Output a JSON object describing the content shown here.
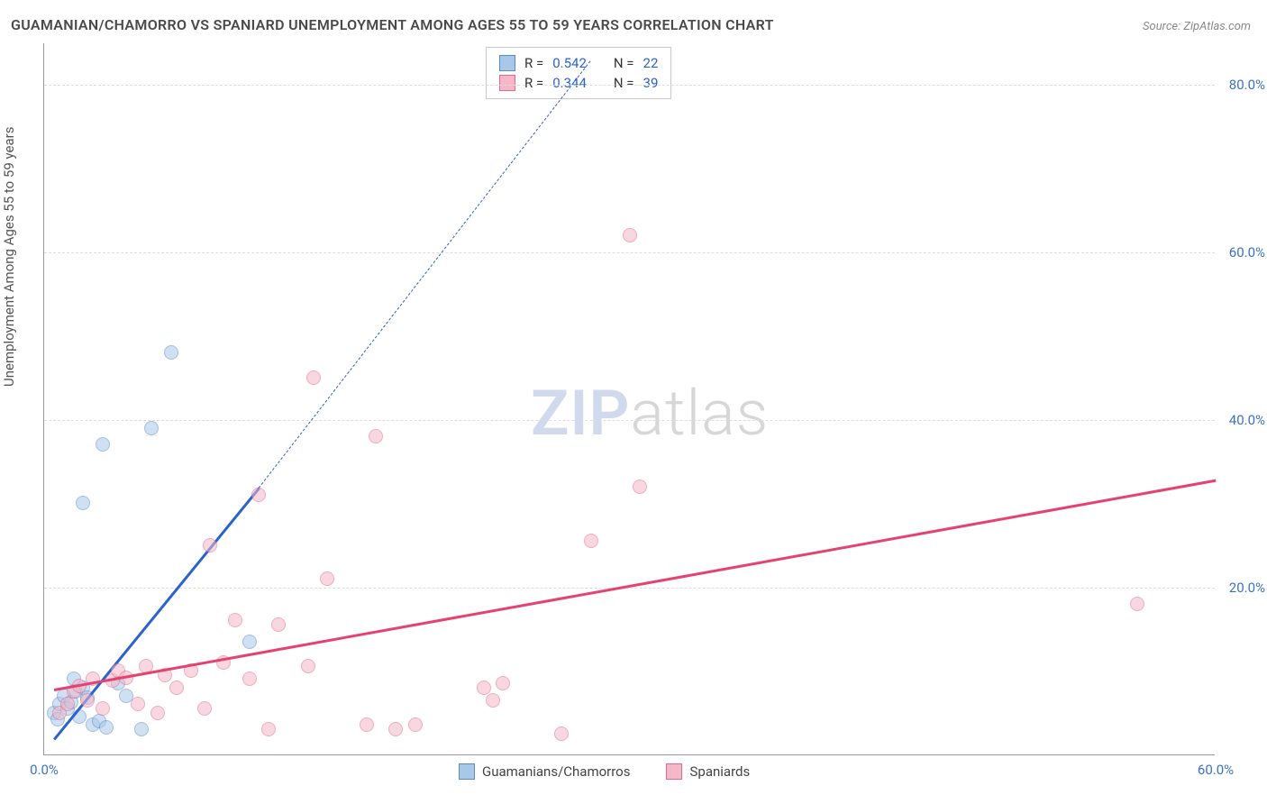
{
  "title": "GUAMANIAN/CHAMORRO VS SPANIARD UNEMPLOYMENT AMONG AGES 55 TO 59 YEARS CORRELATION CHART",
  "source_label": "Source: ZipAtlas.com",
  "y_axis_label": "Unemployment Among Ages 55 to 59 years",
  "watermark_zip": "ZIP",
  "watermark_atlas": "atlas",
  "chart": {
    "type": "scatter",
    "background_color": "#ffffff",
    "grid_color": "#dddddd",
    "axis_color": "#999999",
    "tick_color": "#3b73c4",
    "tick_fontsize": 15,
    "label_fontsize": 15,
    "title_fontsize": 16,
    "title_color": "#4a4a4a",
    "xlim": [
      0,
      60
    ],
    "ylim": [
      0,
      85
    ],
    "x_ticks": [
      {
        "value": 0,
        "label": "0.0%"
      },
      {
        "value": 60,
        "label": "60.0%"
      }
    ],
    "y_ticks": [
      {
        "value": 20,
        "label": "20.0%"
      },
      {
        "value": 40,
        "label": "40.0%"
      },
      {
        "value": 60,
        "label": "60.0%"
      },
      {
        "value": 80,
        "label": "80.0%"
      }
    ],
    "series": [
      {
        "name": "Guamanians/Chamorros",
        "fill_color": "#a7c8e8",
        "stroke_color": "#5a8acb",
        "fill_opacity": 0.55,
        "marker_radius": 8,
        "trend_color": "#2a62d0",
        "trend_width": 2.5,
        "trend_solid": {
          "x1": 0.5,
          "y1": 2,
          "x2": 11,
          "y2": 32
        },
        "trend_dashed": {
          "x1": 11,
          "y1": 32,
          "x2": 28,
          "y2": 83
        },
        "R": "0.542",
        "N": "22",
        "points": [
          {
            "x": 0.5,
            "y": 5
          },
          {
            "x": 0.8,
            "y": 6
          },
          {
            "x": 1.0,
            "y": 7
          },
          {
            "x": 1.2,
            "y": 5.5
          },
          {
            "x": 1.4,
            "y": 6.2
          },
          {
            "x": 1.6,
            "y": 7.5
          },
          {
            "x": 1.8,
            "y": 4.5
          },
          {
            "x": 2.0,
            "y": 8.0
          },
          {
            "x": 2.2,
            "y": 6.8
          },
          {
            "x": 2.5,
            "y": 3.5
          },
          {
            "x": 2.8,
            "y": 4.0
          },
          {
            "x": 3.2,
            "y": 3.2
          },
          {
            "x": 3.8,
            "y": 8.5
          },
          {
            "x": 4.2,
            "y": 7.0
          },
          {
            "x": 5.0,
            "y": 3.0
          },
          {
            "x": 2.0,
            "y": 30
          },
          {
            "x": 3.0,
            "y": 37
          },
          {
            "x": 5.5,
            "y": 39
          },
          {
            "x": 6.5,
            "y": 48
          },
          {
            "x": 10.5,
            "y": 13.5
          },
          {
            "x": 1.5,
            "y": 9
          },
          {
            "x": 0.7,
            "y": 4.2
          }
        ]
      },
      {
        "name": "Spaniards",
        "fill_color": "#f5b8c8",
        "stroke_color": "#e06a8c",
        "fill_opacity": 0.55,
        "marker_radius": 8,
        "trend_color": "#e5426f",
        "trend_width": 2.5,
        "trend_solid": {
          "x1": 0.5,
          "y1": 8,
          "x2": 60,
          "y2": 33
        },
        "R": "0.344",
        "N": "39",
        "points": [
          {
            "x": 0.8,
            "y": 5
          },
          {
            "x": 1.2,
            "y": 6
          },
          {
            "x": 1.5,
            "y": 7.5
          },
          {
            "x": 1.8,
            "y": 8.2
          },
          {
            "x": 2.2,
            "y": 6.5
          },
          {
            "x": 2.5,
            "y": 9
          },
          {
            "x": 3.0,
            "y": 5.5
          },
          {
            "x": 3.5,
            "y": 8.8
          },
          {
            "x": 3.8,
            "y": 10
          },
          {
            "x": 4.2,
            "y": 9.2
          },
          {
            "x": 4.8,
            "y": 6.0
          },
          {
            "x": 5.2,
            "y": 10.5
          },
          {
            "x": 5.8,
            "y": 5.0
          },
          {
            "x": 6.2,
            "y": 9.5
          },
          {
            "x": 6.8,
            "y": 8
          },
          {
            "x": 7.5,
            "y": 10
          },
          {
            "x": 8.2,
            "y": 5.5
          },
          {
            "x": 8.5,
            "y": 25
          },
          {
            "x": 9.2,
            "y": 11
          },
          {
            "x": 9.8,
            "y": 16
          },
          {
            "x": 10.5,
            "y": 9
          },
          {
            "x": 11.0,
            "y": 31
          },
          {
            "x": 11.5,
            "y": 3.0
          },
          {
            "x": 12.0,
            "y": 15.5
          },
          {
            "x": 13.5,
            "y": 10.5
          },
          {
            "x": 13.8,
            "y": 45
          },
          {
            "x": 14.5,
            "y": 21
          },
          {
            "x": 16.5,
            "y": 3.5
          },
          {
            "x": 17.0,
            "y": 38
          },
          {
            "x": 18.0,
            "y": 3.0
          },
          {
            "x": 19.0,
            "y": 3.5
          },
          {
            "x": 22.5,
            "y": 8.0
          },
          {
            "x": 23.0,
            "y": 6.5
          },
          {
            "x": 23.5,
            "y": 8.5
          },
          {
            "x": 26.5,
            "y": 2.5
          },
          {
            "x": 28.0,
            "y": 25.5
          },
          {
            "x": 30.0,
            "y": 62
          },
          {
            "x": 30.5,
            "y": 32
          },
          {
            "x": 56.0,
            "y": 18
          }
        ]
      }
    ],
    "legend_top": {
      "R_label": "R =",
      "N_label": "N ="
    },
    "legend_bottom": [
      {
        "label": "Guamanians/Chamorros",
        "fill": "#a7c8e8",
        "stroke": "#5a8acb"
      },
      {
        "label": "Spaniards",
        "fill": "#f5b8c8",
        "stroke": "#e06a8c"
      }
    ]
  }
}
